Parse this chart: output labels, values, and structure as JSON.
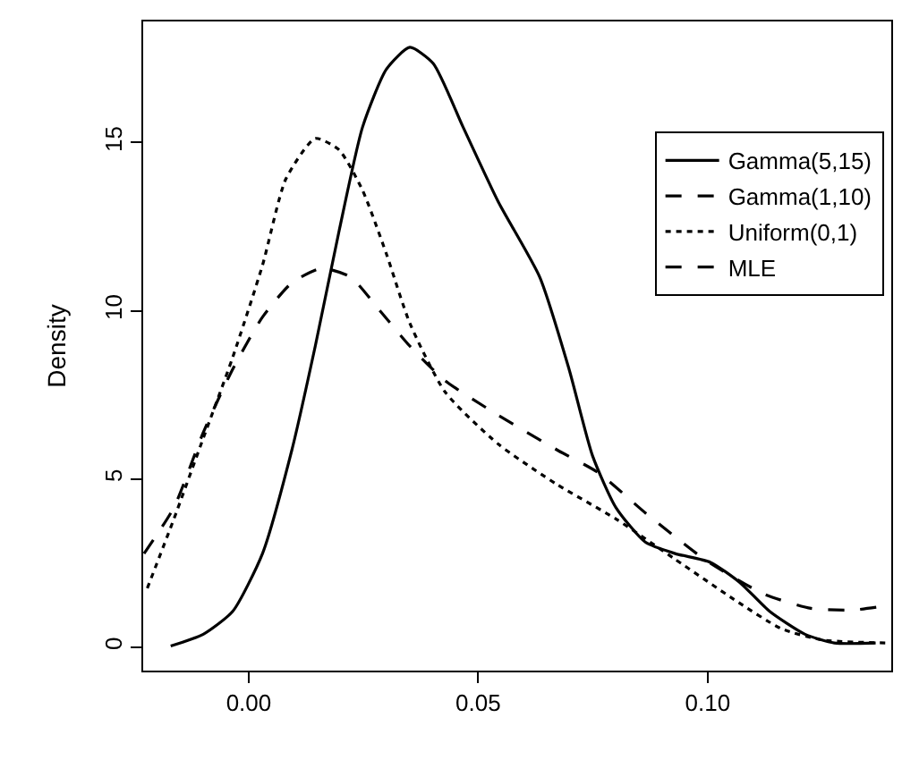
{
  "chart_data": {
    "type": "line",
    "ylabel": "Density",
    "xlim": [
      -0.023,
      0.14
    ],
    "ylim": [
      -0.7,
      18.6
    ],
    "xticks": [
      {
        "value": 0,
        "label": "0.00"
      },
      0.05,
      {
        "value": 0.1,
        "label": "0.10"
      }
    ],
    "yticks": [
      0,
      5,
      10,
      15
    ],
    "legend": "top right",
    "marker": "none",
    "series": [
      {
        "name": "Gamma(5,15)",
        "color": "#000000",
        "line_style": "solid",
        "x": [
          -0.017,
          -0.0099,
          -0.0035,
          0.003,
          0.0094,
          0.0145,
          0.0197,
          0.0248,
          0.03,
          0.0351,
          0.0402,
          0.0467,
          0.0544,
          0.0634,
          0.0698,
          0.0749,
          0.08,
          0.0864,
          0.0929,
          0.1006,
          0.107,
          0.1135,
          0.1212,
          0.1276,
          0.1366
        ],
        "values": [
          0.03,
          0.38,
          1.06,
          2.78,
          5.86,
          8.95,
          12.38,
          15.46,
          17.18,
          17.83,
          17.35,
          15.46,
          13.23,
          11.0,
          8.26,
          5.69,
          4.15,
          3.12,
          2.78,
          2.52,
          1.92,
          1.06,
          0.38,
          0.12,
          0.12
        ]
      },
      {
        "name": "Gamma(1,10)",
        "color": "#000000",
        "line_style": "dashed",
        "x": [
          -0.0228,
          -0.0163,
          -0.0099,
          -0.0035,
          0.003,
          0.0094,
          0.0158,
          0.0222,
          0.0287,
          0.0351,
          0.0428,
          0.0544,
          0.0672,
          0.0762,
          0.0865,
          0.0993,
          0.1122,
          0.1225,
          0.1315,
          0.1392
        ],
        "values": [
          2.78,
          4.15,
          6.38,
          8.26,
          9.81,
          10.83,
          11.26,
          11.0,
          9.98,
          8.95,
          7.92,
          6.89,
          5.86,
          5.18,
          3.98,
          2.61,
          1.58,
          1.15,
          1.1,
          1.23
        ]
      },
      {
        "name": "Uniform(0,1)",
        "color": "#000000",
        "line_style": "dotted",
        "x": [
          -0.0221,
          -0.0163,
          -0.0099,
          -0.0035,
          0.003,
          0.0081,
          0.0145,
          0.0197,
          0.0248,
          0.03,
          0.0351,
          0.0428,
          0.0544,
          0.0672,
          0.08,
          0.0929,
          0.1058,
          0.116,
          0.125,
          0.1392
        ],
        "values": [
          1.75,
          3.81,
          6.21,
          8.61,
          11.35,
          13.92,
          15.12,
          14.78,
          13.58,
          11.69,
          9.63,
          7.58,
          6.03,
          4.83,
          3.81,
          2.61,
          1.41,
          0.55,
          0.21,
          0.12
        ]
      },
      {
        "name": "MLE",
        "color": "#000000",
        "line_style": "dashed"
      }
    ]
  }
}
